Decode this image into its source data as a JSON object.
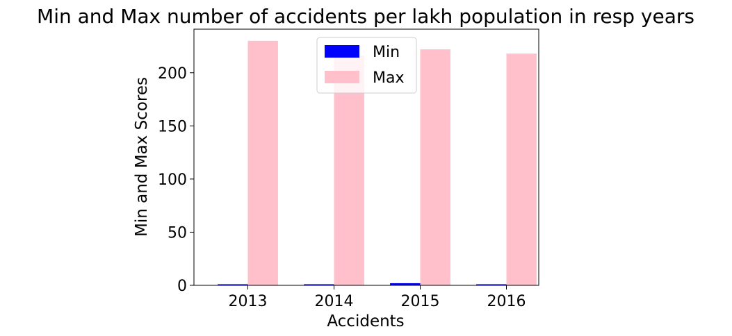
{
  "chart_data": {
    "type": "bar",
    "title": "Min and Max number of  accidents per lakh population in resp years",
    "xlabel": "Accidents",
    "ylabel": "Min and Max Scores",
    "categories": [
      "2013",
      "2014",
      "2015",
      "2016"
    ],
    "series": [
      {
        "name": "Min",
        "values": [
          1.0,
          1.0,
          2.0,
          1.0
        ],
        "color": "#0000ff"
      },
      {
        "name": "Max",
        "values": [
          230,
          216,
          222,
          218
        ],
        "color": "#ffc0cb"
      }
    ],
    "ylim": [
      0,
      241
    ],
    "yticks": [
      0,
      50,
      100,
      150,
      200
    ],
    "grid": false,
    "legend_position": "upper center"
  }
}
